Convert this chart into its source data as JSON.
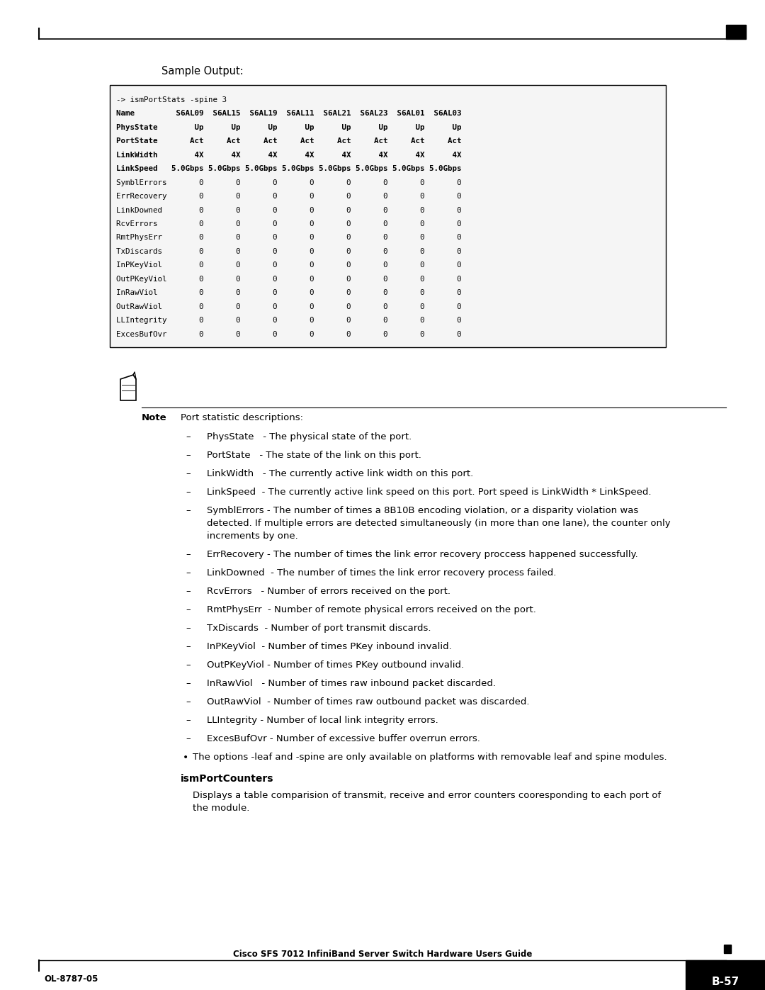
{
  "page_width": 10.8,
  "page_height": 13.97,
  "bg_color": "#ffffff",
  "sample_output_label": "Sample Output:",
  "code_lines": [
    "-> ismPortStats -spine 3",
    "Name         S6AL09  S6AL15  S6AL19  S6AL11  S6AL21  S6AL23  S6AL01  S6AL03",
    "PhysState        Up      Up      Up      Up      Up      Up      Up      Up",
    "PortState       Act     Act     Act     Act     Act     Act     Act     Act",
    "LinkWidth        4X      4X      4X      4X      4X      4X      4X      4X",
    "LinkSpeed   5.0Gbps 5.0Gbps 5.0Gbps 5.0Gbps 5.0Gbps 5.0Gbps 5.0Gbps 5.0Gbps",
    "SymblErrors       0       0       0       0       0       0       0       0",
    "ErrRecovery       0       0       0       0       0       0       0       0",
    "LinkDowned        0       0       0       0       0       0       0       0",
    "RcvErrors         0       0       0       0       0       0       0       0",
    "RmtPhysErr        0       0       0       0       0       0       0       0",
    "TxDiscards        0       0       0       0       0       0       0       0",
    "InPKeyViol        0       0       0       0       0       0       0       0",
    "OutPKeyViol       0       0       0       0       0       0       0       0",
    "InRawViol         0       0       0       0       0       0       0       0",
    "OutRawViol        0       0       0       0       0       0       0       0",
    "LLIntegrity       0       0       0       0       0       0       0       0",
    "ExcesBufOvr       0       0       0       0       0       0       0       0"
  ],
  "code_bold_rows": [
    1,
    2,
    3,
    4,
    5
  ],
  "note_title": "Port statistic descriptions:",
  "bullet_items": [
    [
      "PhysState   - The physical state of the port."
    ],
    [
      "PortState   - The state of the link on this port."
    ],
    [
      "LinkWidth   - The currently active link width on this port."
    ],
    [
      "LinkSpeed  - The currently active link speed on this port. Port speed is LinkWidth * LinkSpeed."
    ],
    [
      "SymblErrors - The number of times a 8B10B encoding violation, or a disparity violation was",
      "detected. If multiple errors are detected simultaneously (in more than one lane), the counter only",
      "increments by one."
    ],
    [
      "ErrRecovery - The number of times the link error recovery proccess happened successfully."
    ],
    [
      "LinkDowned  - The number of times the link error recovery process failed."
    ],
    [
      "RcvErrors   - Number of errors received on the port."
    ],
    [
      "RmtPhysErr  - Number of remote physical errors received on the port."
    ],
    [
      "TxDiscards  - Number of port transmit discards."
    ],
    [
      "InPKeyViol  - Number of times PKey inbound invalid."
    ],
    [
      "OutPKeyViol - Number of times PKey outbound invalid."
    ],
    [
      "InRawViol   - Number of times raw inbound packet discarded."
    ],
    [
      "OutRawViol  - Number of times raw outbound packet was discarded."
    ],
    [
      "LLIntegrity - Number of local link integrity errors."
    ],
    [
      "ExcesBufOvr - Number of excessive buffer overrun errors."
    ]
  ],
  "extra_bullet": "The options -leaf and -spine are only available on platforms with removable leaf and spine modules.",
  "section_title": "ismPortCounters",
  "section_body_line1": "Displays a table comparision of transmit, receive and error counters cooresponding to each port of",
  "section_body_line2": "the module.",
  "footer_left": "OL-8787-05",
  "footer_center": "Cisco SFS 7012 InfiniBand Server Switch Hardware Users Guide",
  "footer_right": "B-57"
}
